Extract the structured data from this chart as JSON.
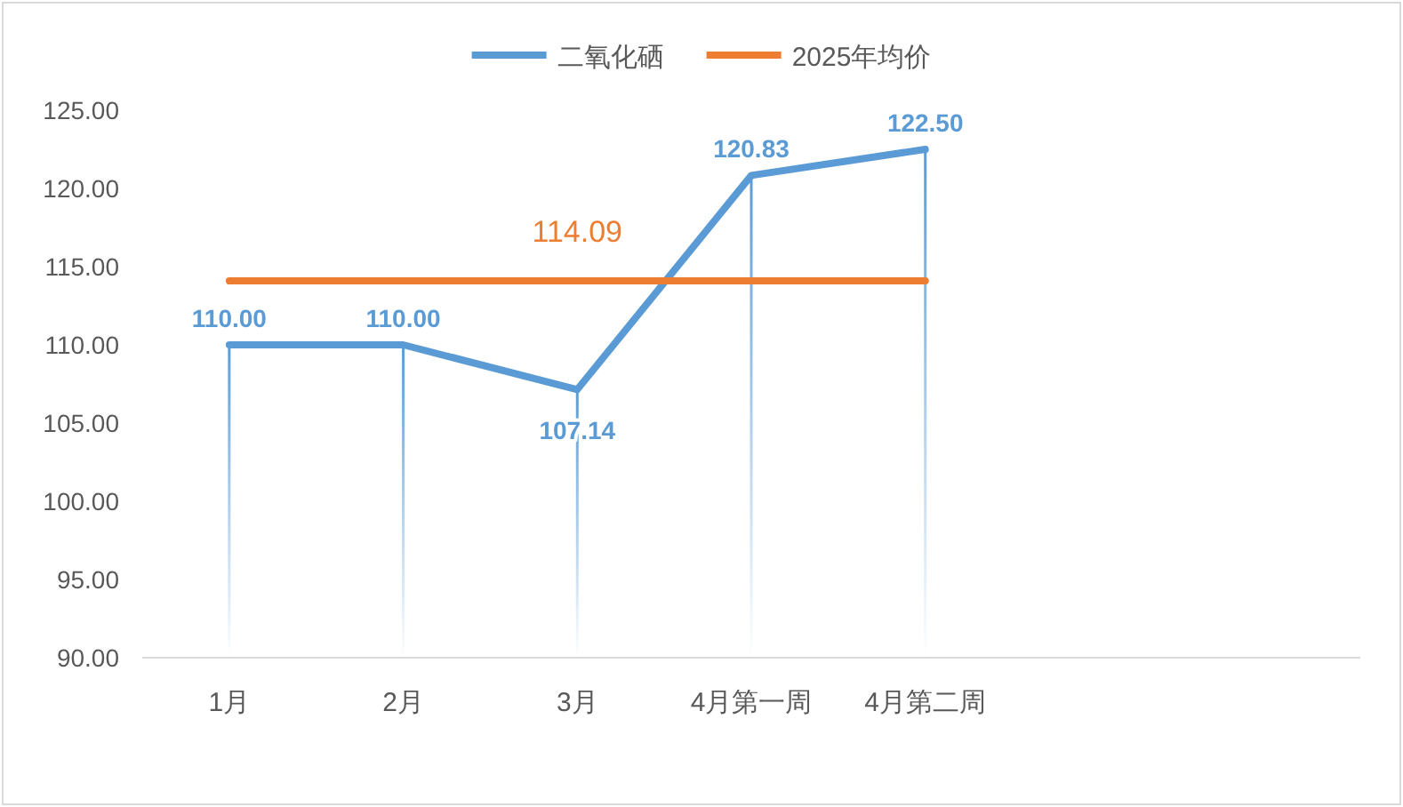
{
  "chart_data": {
    "type": "line",
    "categories": [
      "1月",
      "2月",
      "3月",
      "4月第一周",
      "4月第二周",
      null,
      null
    ],
    "series": [
      {
        "name": "二氧化硒",
        "color": "#5b9bd5",
        "values": [
          110.0,
          110.0,
          107.14,
          120.83,
          122.5,
          null,
          null
        ],
        "value_labels": [
          "110.00",
          "110.00",
          "107.14",
          "120.83",
          "122.50",
          null,
          null
        ],
        "errors": [
          [
            90,
            110.0
          ],
          [
            90,
            110.0
          ],
          [
            90,
            107.14
          ],
          [
            90,
            120.83
          ],
          [
            90,
            122.5
          ],
          null,
          null
        ]
      },
      {
        "name": "2025年均价",
        "color": "#ed7d31",
        "values": [
          114.09,
          114.09,
          114.09,
          114.09,
          114.09,
          null,
          null
        ],
        "value_labels": [
          null,
          null,
          "114.09",
          null,
          null,
          null,
          null
        ]
      }
    ],
    "ylim": [
      90,
      125
    ],
    "yticks": [
      {
        "value": 90,
        "label": "90.00"
      },
      {
        "value": 95,
        "label": "95.00"
      },
      {
        "value": 100,
        "label": "100.00"
      },
      {
        "value": 105,
        "label": "105.00"
      },
      {
        "value": 110,
        "label": "110.00"
      },
      {
        "value": 115,
        "label": "115.00"
      },
      {
        "value": 120,
        "label": "120.00"
      },
      {
        "value": 125,
        "label": "125.00"
      }
    ],
    "grid": false,
    "legend": "top",
    "marker": "none",
    "line_style": "solid"
  }
}
